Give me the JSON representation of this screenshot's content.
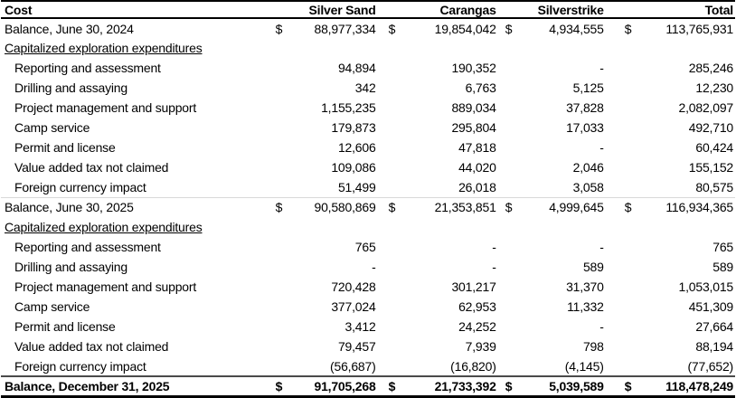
{
  "table": {
    "columns": [
      "Cost",
      "Silver Sand",
      "Carangas",
      "Silverstrike",
      "Total"
    ],
    "currency_symbol": "$",
    "rows": [
      {
        "label": "Balance, June 30, 2024",
        "type": "balance",
        "dollar": "$",
        "values": [
          "88,977,334",
          "19,854,042",
          "4,934,555",
          "113,765,931"
        ]
      },
      {
        "label": "Capitalized exploration expenditures",
        "type": "section",
        "values": [
          "",
          "",
          "",
          ""
        ]
      },
      {
        "label": "Reporting and assessment",
        "type": "item",
        "values": [
          "94,894",
          "190,352",
          "-",
          "285,246"
        ]
      },
      {
        "label": "Drilling and assaying",
        "type": "item",
        "values": [
          "342",
          "6,763",
          "5,125",
          "12,230"
        ]
      },
      {
        "label": "Project management and support",
        "type": "item",
        "values": [
          "1,155,235",
          "889,034",
          "37,828",
          "2,082,097"
        ]
      },
      {
        "label": "Camp service",
        "type": "item",
        "values": [
          "179,873",
          "295,804",
          "17,033",
          "492,710"
        ]
      },
      {
        "label": "Permit and license",
        "type": "item",
        "values": [
          "12,606",
          "47,818",
          "-",
          "60,424"
        ]
      },
      {
        "label": "Value added tax not claimed",
        "type": "item",
        "values": [
          "109,086",
          "44,020",
          "2,046",
          "155,152"
        ]
      },
      {
        "label": "Foreign currency impact",
        "type": "item",
        "values": [
          "51,499",
          "26,018",
          "3,058",
          "80,575"
        ]
      },
      {
        "label": "Balance, June 30, 2025",
        "type": "balance",
        "rule_above": "light",
        "dollar": "$",
        "values": [
          "90,580,869",
          "21,353,851",
          "4,999,645",
          "116,934,365"
        ]
      },
      {
        "label": "Capitalized exploration expenditures",
        "type": "section",
        "values": [
          "",
          "",
          "",
          ""
        ]
      },
      {
        "label": "Reporting and assessment",
        "type": "item",
        "values": [
          "765",
          "-",
          "-",
          "765"
        ]
      },
      {
        "label": "Drilling and assaying",
        "type": "item",
        "values": [
          "-",
          "-",
          "589",
          "589"
        ]
      },
      {
        "label": "Project management and support",
        "type": "item",
        "values": [
          "720,428",
          "301,217",
          "31,370",
          "1,053,015"
        ]
      },
      {
        "label": "Camp service",
        "type": "item",
        "values": [
          "377,024",
          "62,953",
          "11,332",
          "451,309"
        ]
      },
      {
        "label": "Permit and license",
        "type": "item",
        "values": [
          "3,412",
          "24,252",
          "-",
          "27,664"
        ]
      },
      {
        "label": "Value added tax not claimed",
        "type": "item",
        "values": [
          "79,457",
          "7,939",
          "798",
          "88,194"
        ]
      },
      {
        "label": "Foreign currency impact",
        "type": "item",
        "values": [
          "(56,687)",
          "(16,820)",
          "(4,145)",
          "(77,652)"
        ]
      },
      {
        "label": "Balance, December 31, 2025",
        "type": "total",
        "rule_above": "dark",
        "dollar": "$",
        "values": [
          "91,705,268",
          "21,733,392",
          "5,039,589",
          "118,478,249"
        ]
      }
    ],
    "colors": {
      "text": "#000000",
      "border_heavy": "#000000",
      "border_light": "#d9d9d9",
      "border_medium": "#4a4a4a",
      "background": "#ffffff"
    }
  }
}
